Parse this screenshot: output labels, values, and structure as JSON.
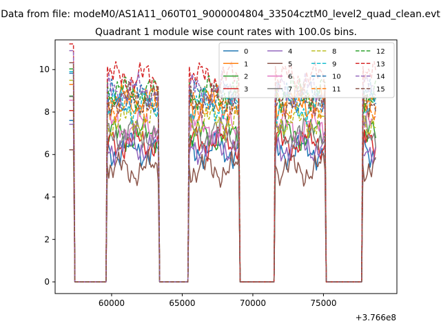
{
  "figure": {
    "suptitle": "Data from file: modeM0/AS1A11_060T01_9000004804_33504cztM0_level2_quad_clean.evt",
    "offset_text": "+3.766e8"
  },
  "chart_data": {
    "type": "line",
    "title": "Quadrant 1 module wise count rates with 100.0s bins.",
    "xlabel": "",
    "ylabel": "",
    "x_offset": 376600000,
    "xlim": [
      56000,
      80200
    ],
    "ylim": [
      -0.55,
      11.4
    ],
    "x_ticks": [
      60000,
      65000,
      70000,
      75000
    ],
    "x_tick_labels": [
      "60000",
      "65000",
      "70000",
      "75000"
    ],
    "y_ticks": [
      0,
      2,
      4,
      6,
      8,
      10
    ],
    "y_tick_labels": [
      "0",
      "2",
      "4",
      "6",
      "8",
      "10"
    ],
    "grid": false,
    "legend": {
      "position": "top-right",
      "columns": 4
    },
    "on_intervals": [
      [
        57000,
        57300
      ],
      [
        59700,
        63300
      ],
      [
        65500,
        69000
      ],
      [
        71600,
        75100
      ],
      [
        77800,
        78700
      ]
    ],
    "series": [
      {
        "name": "0",
        "color": "#1f77b4",
        "dash": "solid",
        "mean": 6.2
      },
      {
        "name": "1",
        "color": "#ff7f0e",
        "dash": "solid",
        "mean": 8.5
      },
      {
        "name": "2",
        "color": "#2ca02c",
        "dash": "solid",
        "mean": 6.9
      },
      {
        "name": "3",
        "color": "#d62728",
        "dash": "solid",
        "mean": 6.6
      },
      {
        "name": "4",
        "color": "#9467bd",
        "dash": "solid",
        "mean": 6.4
      },
      {
        "name": "5",
        "color": "#8c564b",
        "dash": "solid",
        "mean": 5.3
      },
      {
        "name": "6",
        "color": "#e377c2",
        "dash": "solid",
        "mean": 7.3
      },
      {
        "name": "7",
        "color": "#7f7f7f",
        "dash": "solid",
        "mean": 7.0
      },
      {
        "name": "8",
        "color": "#bcbd22",
        "dash": "dashed",
        "mean": 7.6
      },
      {
        "name": "9",
        "color": "#17becf",
        "dash": "dashed",
        "mean": 8.3
      },
      {
        "name": "10",
        "color": "#1f77b4",
        "dash": "dashed",
        "mean": 8.7
      },
      {
        "name": "11",
        "color": "#ff7f0e",
        "dash": "dashed",
        "mean": 8.4
      },
      {
        "name": "12",
        "color": "#2ca02c",
        "dash": "dashed",
        "mean": 8.9
      },
      {
        "name": "13",
        "color": "#d62728",
        "dash": "dashed",
        "mean": 9.6
      },
      {
        "name": "14",
        "color": "#9467bd",
        "dash": "dashed",
        "mean": 9.0
      },
      {
        "name": "15",
        "color": "#8c564b",
        "dash": "dashed",
        "mean": 8.6
      }
    ]
  }
}
